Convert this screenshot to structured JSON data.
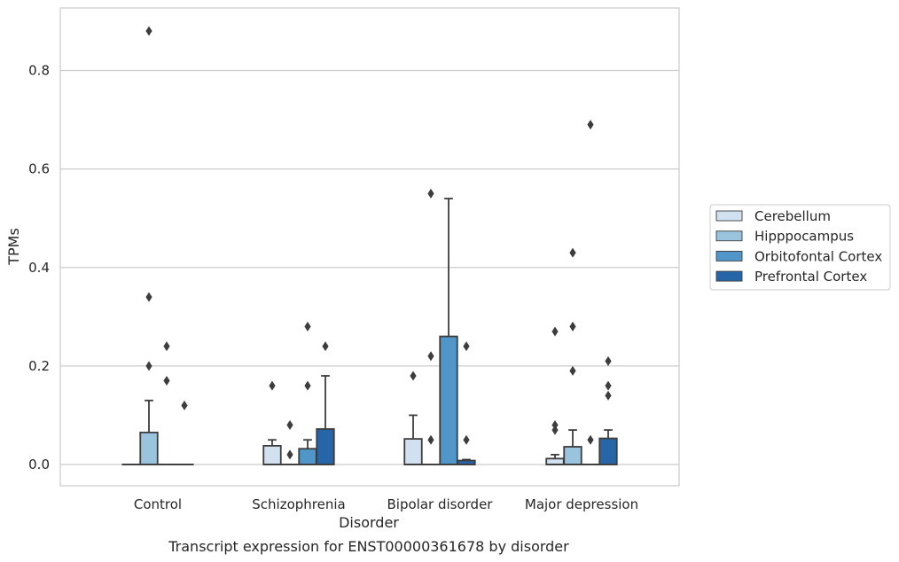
{
  "chart_data": {
    "type": "box",
    "caption": "Transcript expression for ENST00000361678 by disorder",
    "xlabel": "Disorder",
    "ylabel": "TPMs",
    "ylim": [
      -0.042,
      0.93
    ],
    "yticks": [
      0.0,
      0.2,
      0.4,
      0.6,
      0.8
    ],
    "ytick_labels": [
      "0.0",
      "0.2",
      "0.4",
      "0.6",
      "0.8"
    ],
    "grid": "horizontal",
    "legend_position": "right",
    "categories": [
      "Control",
      "Schizophrenia",
      "Bipolar disorder",
      "Major depression"
    ],
    "series": [
      {
        "name": "Cerebellum",
        "color": "#d1e1ef",
        "boxes": [
          {
            "q1": 0.0,
            "median": 0.0,
            "q3": 0.0,
            "whisker_low": 0.0,
            "whisker_high": 0.0,
            "outliers": []
          },
          {
            "q1": 0.0,
            "median": 0.0,
            "q3": 0.038,
            "whisker_low": 0.0,
            "whisker_high": 0.05,
            "outliers": [
              0.16
            ]
          },
          {
            "q1": 0.0,
            "median": 0.0,
            "q3": 0.052,
            "whisker_low": 0.0,
            "whisker_high": 0.1,
            "outliers": [
              0.18
            ]
          },
          {
            "q1": 0.0,
            "median": 0.0,
            "q3": 0.012,
            "whisker_low": 0.0,
            "whisker_high": 0.02,
            "outliers": [
              0.07,
              0.08,
              0.27
            ]
          }
        ]
      },
      {
        "name": "Hipppocampus",
        "color": "#9ac3de",
        "boxes": [
          {
            "q1": 0.0,
            "median": 0.0,
            "q3": 0.065,
            "whisker_low": 0.0,
            "whisker_high": 0.13,
            "outliers": [
              0.2,
              0.34,
              0.88
            ]
          },
          {
            "q1": 0.0,
            "median": 0.0,
            "q3": 0.0,
            "whisker_low": 0.0,
            "whisker_high": 0.0,
            "outliers": [
              0.02,
              0.08
            ]
          },
          {
            "q1": 0.0,
            "median": 0.0,
            "q3": 0.0,
            "whisker_low": 0.0,
            "whisker_high": 0.0,
            "outliers": [
              0.05,
              0.22,
              0.55
            ]
          },
          {
            "q1": 0.0,
            "median": 0.0,
            "q3": 0.036,
            "whisker_low": 0.0,
            "whisker_high": 0.07,
            "outliers": [
              0.19,
              0.28,
              0.43
            ]
          }
        ]
      },
      {
        "name": "Orbitofontal Cortex",
        "color": "#5096c8",
        "boxes": [
          {
            "q1": 0.0,
            "median": 0.0,
            "q3": 0.0,
            "whisker_low": 0.0,
            "whisker_high": 0.0,
            "outliers": [
              0.17,
              0.24
            ]
          },
          {
            "q1": 0.0,
            "median": 0.0,
            "q3": 0.032,
            "whisker_low": 0.0,
            "whisker_high": 0.05,
            "outliers": [
              0.16,
              0.28
            ]
          },
          {
            "q1": 0.0,
            "median": 0.0,
            "q3": 0.26,
            "whisker_low": 0.0,
            "whisker_high": 0.54,
            "outliers": []
          },
          {
            "q1": 0.0,
            "median": 0.0,
            "q3": 0.0,
            "whisker_low": 0.0,
            "whisker_high": 0.0,
            "outliers": [
              0.05,
              0.69
            ]
          }
        ]
      },
      {
        "name": "Prefrontal Cortex",
        "color": "#2666a8",
        "boxes": [
          {
            "q1": 0.0,
            "median": 0.0,
            "q3": 0.0,
            "whisker_low": 0.0,
            "whisker_high": 0.0,
            "outliers": [
              0.12
            ]
          },
          {
            "q1": 0.0,
            "median": 0.0,
            "q3": 0.072,
            "whisker_low": 0.0,
            "whisker_high": 0.18,
            "outliers": [
              0.24
            ]
          },
          {
            "q1": 0.0,
            "median": 0.0,
            "q3": 0.008,
            "whisker_low": 0.0,
            "whisker_high": 0.01,
            "outliers": [
              0.05,
              0.24
            ]
          },
          {
            "q1": 0.0,
            "median": 0.0,
            "q3": 0.053,
            "whisker_low": 0.0,
            "whisker_high": 0.07,
            "outliers": [
              0.14,
              0.16,
              0.21
            ]
          }
        ]
      }
    ]
  }
}
